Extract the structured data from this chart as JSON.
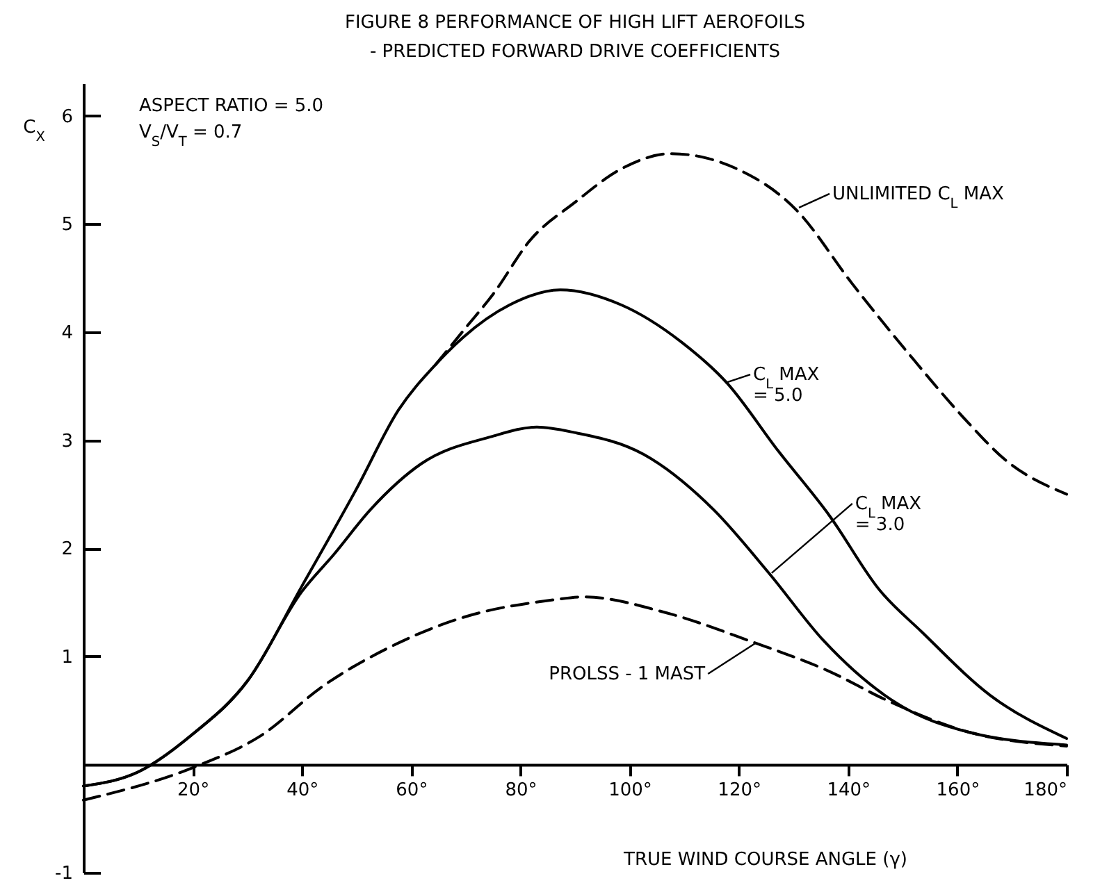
{
  "chart_data": {
    "type": "line",
    "title": "FIGURE 8      PERFORMANCE OF HIGH LIFT AEROFOILS",
    "subtitle": "- PREDICTED FORWARD DRIVE COEFFICIENTS",
    "xlabel": "TRUE WIND COURSE ANGLE (γ)",
    "ylabel": "C$_{X}$",
    "xlim": [
      0,
      180
    ],
    "xticks": [
      {
        "value": 20,
        "label": "20°"
      },
      {
        "value": 40,
        "label": "40°"
      },
      {
        "value": 60,
        "label": "60°"
      },
      {
        "value": 80,
        "label": "80°"
      },
      {
        "value": 100,
        "label": "100°"
      },
      {
        "value": 120,
        "label": "120°"
      },
      {
        "value": 140,
        "label": "140°"
      },
      {
        "value": 160,
        "label": "160°"
      },
      {
        "value": 180,
        "label": "180°"
      }
    ],
    "ylim": [
      -1,
      6.3
    ],
    "yticks": [
      -1,
      1,
      2,
      3,
      4,
      5,
      6
    ],
    "grid": false,
    "series": [
      {
        "color": "#000000",
        "line_style": "dashed",
        "x": [
          64.5,
          70,
          75,
          81.8,
          90,
          98.5,
          107.6,
          119.6,
          130.5,
          140.7,
          151.9,
          162,
          168.7,
          180
        ],
        "values": [
          3.7,
          4.04,
          4.35,
          4.85,
          5.2,
          5.51,
          5.65,
          5.51,
          5.13,
          4.45,
          3.75,
          3.16,
          2.82,
          2.5
        ]
      },
      {
        "color": "#000000",
        "line_style": "solid",
        "x": [
          0,
          10,
          20,
          30,
          40,
          50,
          57.7,
          64.5,
          69.5,
          78,
          87.3,
          98.5,
          109.4,
          117.8,
          127.2,
          136.6,
          145.8,
          153.4,
          166,
          180
        ],
        "values": [
          -0.2,
          -0.07,
          0.28,
          0.77,
          1.65,
          2.55,
          3.28,
          3.7,
          3.95,
          4.25,
          4.39,
          4.25,
          3.91,
          3.53,
          2.9,
          2.3,
          1.61,
          1.23,
          0.64,
          0.24
        ]
      },
      {
        "color": "#000000",
        "line_style": "solid",
        "x": [
          0,
          10,
          20,
          30,
          40,
          45.8,
          52.6,
          61.8,
          74.5,
          83,
          89.9,
          102.5,
          115.3,
          125.5,
          135.6,
          149.4,
          162,
          180
        ],
        "values": [
          -0.2,
          -0.07,
          0.28,
          0.77,
          1.6,
          1.94,
          2.36,
          2.78,
          3.03,
          3.12,
          3.07,
          2.87,
          2.36,
          1.77,
          1.14,
          0.55,
          0.3,
          0.18
        ]
      },
      {
        "color": "#000000",
        "line_style": "dashed",
        "x": [
          0,
          20,
          32.3,
          44,
          56.7,
          69.5,
          85.7,
          91.6,
          106.9,
          122.1,
          136.6,
          146.8,
          162,
          180
        ],
        "values": [
          -0.33,
          -0.03,
          0.26,
          0.73,
          1.1,
          1.36,
          1.52,
          1.55,
          1.4,
          1.14,
          0.86,
          0.6,
          0.3,
          0.17
        ]
      }
    ],
    "annotations": [
      {
        "text": "UNLIMITED C$_{L}$ MAX",
        "x": 131,
        "y": 5.15
      },
      {
        "text": "C$_{L}$ MAX\n= 5.0",
        "x": 117.5,
        "y": 3.53
      },
      {
        "text": "C$_{L}$ MAX\n= 3.0",
        "x": 126,
        "y": 1.77
      },
      {
        "text": "PROLSS - 1 MAST",
        "x": 123,
        "y": 1.12
      },
      "ASPECT RATIO = 5.0",
      "V$_{S}$/V$_{T}$   = 0.7"
    ]
  }
}
